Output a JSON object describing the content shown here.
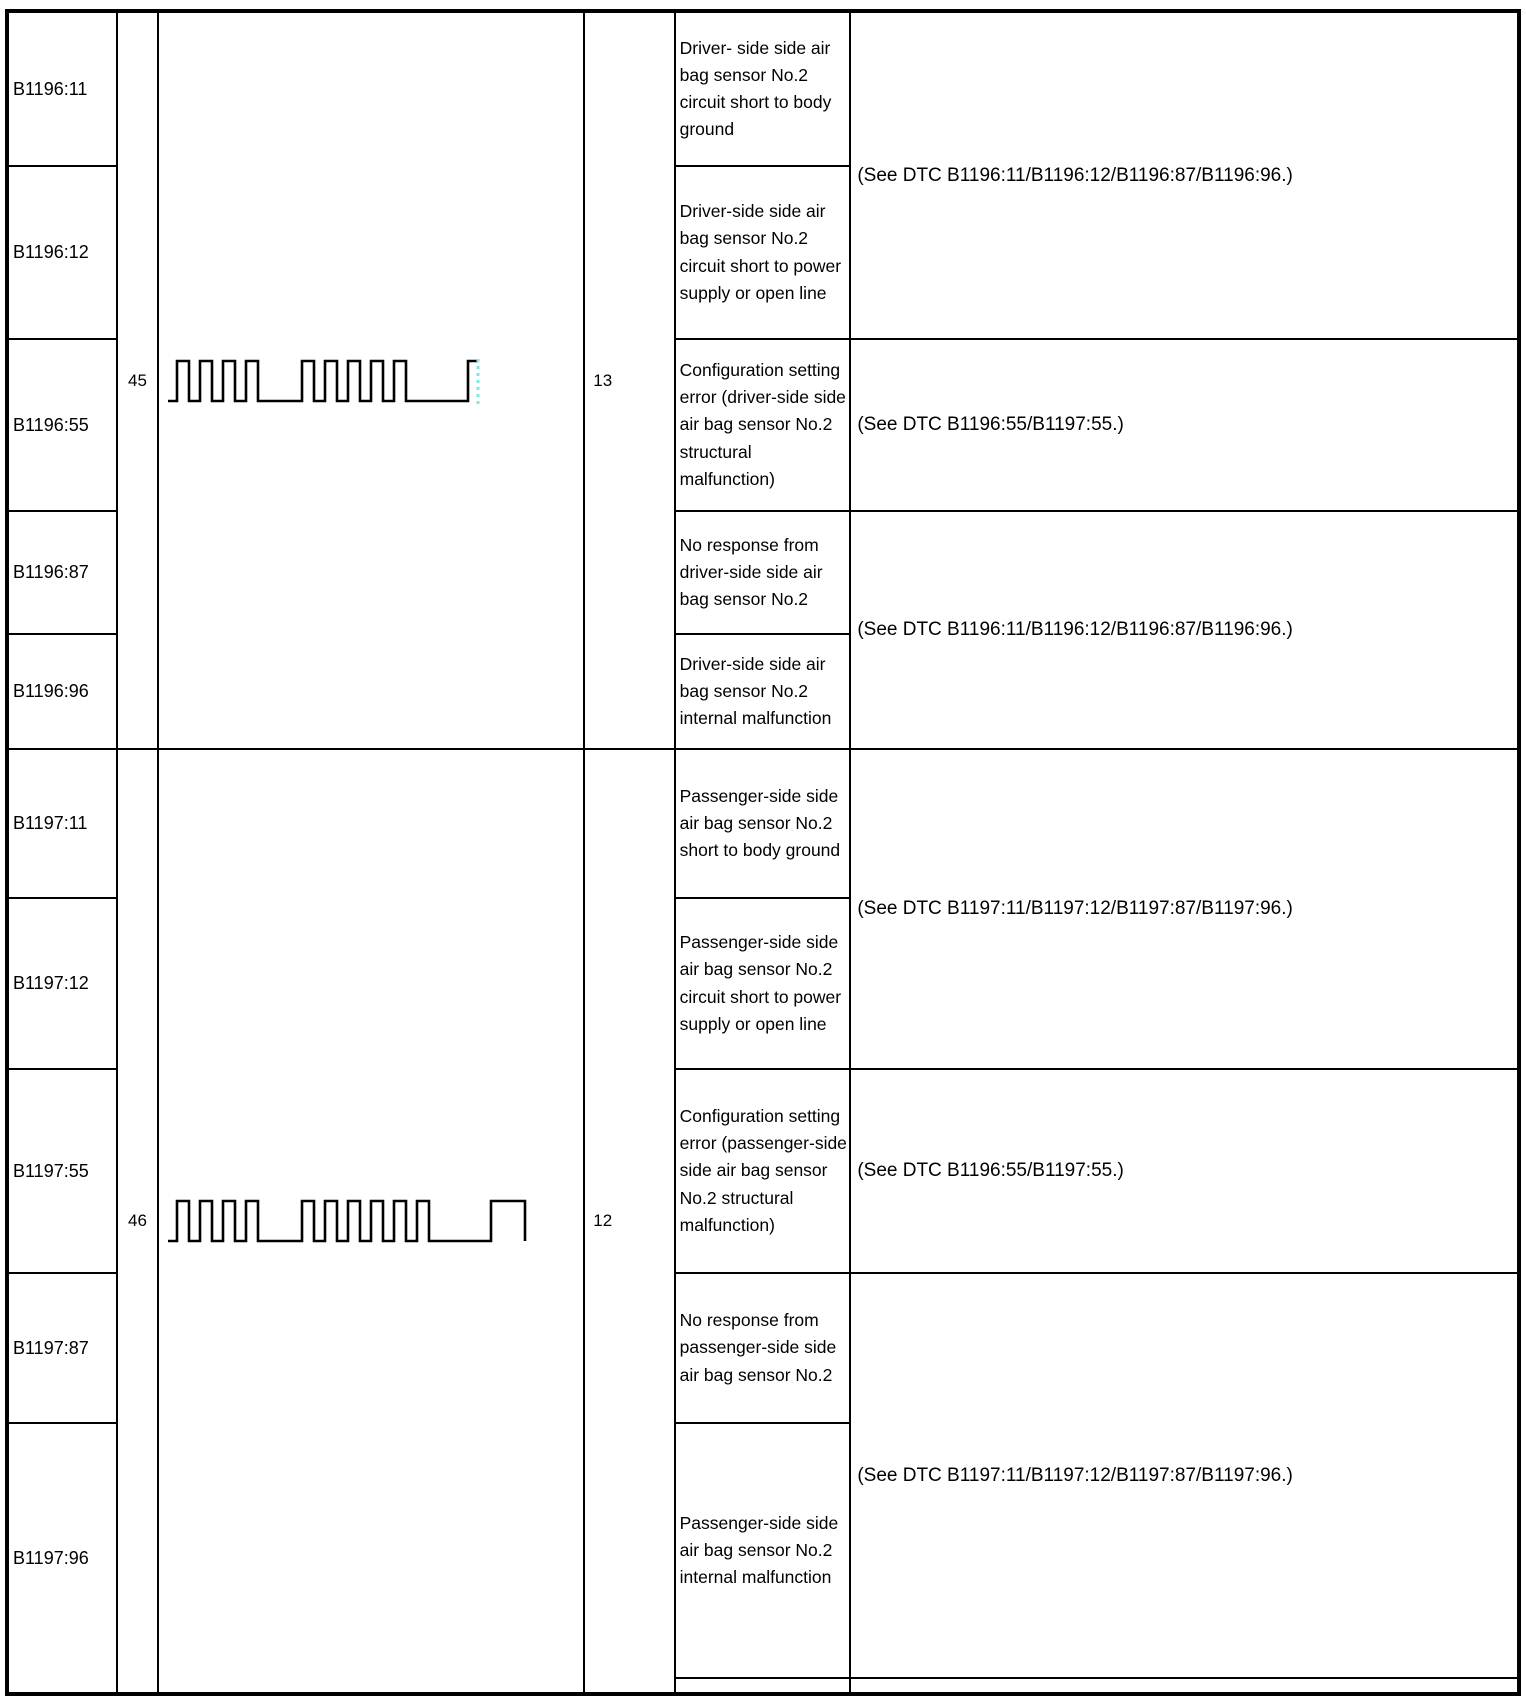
{
  "colors": {
    "border": "#000000",
    "background": "#ffffff",
    "waveform_stroke": "#000000",
    "waveform_continuation_dotted": "#7fe6e6"
  },
  "table": {
    "groups": [
      {
        "flash_code": "45",
        "count": "13",
        "waveform": {
          "pulse_groups": [
            4,
            5
          ],
          "continuation_dotted": true,
          "dotted_color": "#7fe6e6"
        },
        "rows": [
          {
            "dtc": "B1196:11",
            "description": "Driver- side side air bag sensor No.2 circuit short to body ground"
          },
          {
            "dtc": "B1196:12",
            "description": "Driver-side side air bag sensor No.2 circuit short to power supply or open line"
          },
          {
            "dtc": "B1196:55",
            "description": "Configuration setting error (driver-side side air bag sensor No.2 structural malfunction)"
          },
          {
            "dtc": "B1196:87",
            "description": "No response from driver-side side air bag sensor No.2"
          },
          {
            "dtc": "B1196:96",
            "description": "Driver-side side air bag sensor No.2 internal malfunction"
          }
        ],
        "references": [
          {
            "span_rows": 2,
            "text": "(See DTC B1196:11/B1196:12/B1196:87/B1196:96.)"
          },
          {
            "span_rows": 1,
            "text": "(See DTC B1196:55/B1197:55.)"
          },
          {
            "span_rows": 2,
            "text": "(See DTC B1196:11/B1196:12/B1196:87/B1196:96.)"
          }
        ]
      },
      {
        "flash_code": "46",
        "count": "12",
        "waveform": {
          "pulse_groups": [
            4,
            6
          ],
          "continuation_dotted": false,
          "dotted_color": "#7fe6e6"
        },
        "rows": [
          {
            "dtc": "B1197:11",
            "description": "Passenger-side side air bag sensor No.2 short to body ground"
          },
          {
            "dtc": "B1197:12",
            "description": "Passenger-side side air bag sensor No.2 circuit short to power supply or open line"
          },
          {
            "dtc": "B1197:55",
            "description": "Configuration setting error (passenger-side side air bag sensor No.2 structural malfunction)"
          },
          {
            "dtc": "B1197:87",
            "description": "No response from passenger-side side air bag sensor No.2"
          },
          {
            "dtc": "B1197:96",
            "description": "Passenger-side side air bag sensor No.2 internal malfunction"
          }
        ],
        "references": [
          {
            "span_rows": 2,
            "text": "(See DTC B1197:11/B1197:12/B1197:87/B1197:96.)"
          },
          {
            "span_rows": 1,
            "text": "(See DTC B1196:55/B1197:55.)"
          },
          {
            "span_rows": 2,
            "text": "(See DTC B1197:11/B1197:12/B1197:87/B1197:96.)"
          }
        ]
      }
    ]
  }
}
